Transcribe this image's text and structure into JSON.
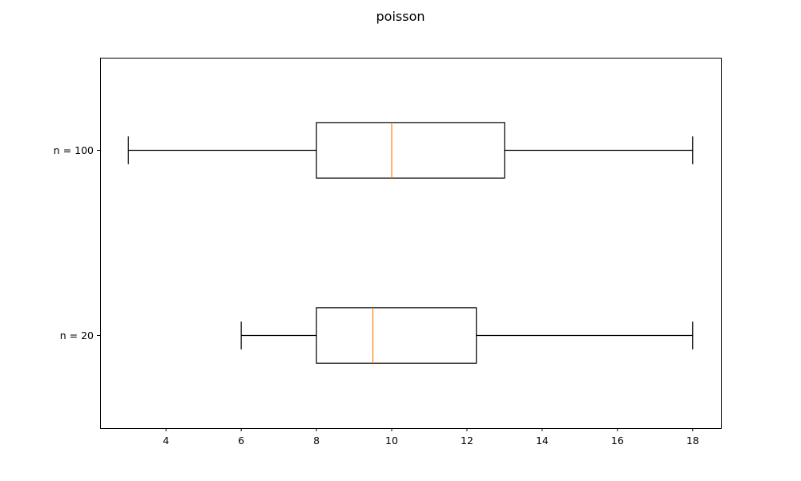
{
  "chart_data": {
    "type": "boxplot",
    "title": "poisson",
    "xlabel": "",
    "ylabel": "",
    "orientation": "horizontal",
    "xlim": [
      2.25,
      18.75
    ],
    "xticks": [
      4,
      6,
      8,
      10,
      12,
      14,
      16,
      18
    ],
    "grid": false,
    "legend": "none",
    "categories": [
      "n = 20",
      "n = 100"
    ],
    "series": [
      {
        "label": "n = 20",
        "whisker_low": 6,
        "q1": 8,
        "median": 9.5,
        "q3": 12.25,
        "whisker_high": 18
      },
      {
        "label": "n = 100",
        "whisker_low": 3,
        "q1": 8,
        "median": 10,
        "q3": 13,
        "whisker_high": 18
      }
    ],
    "colors": {
      "box": "#000000",
      "median": "#ff7f0e",
      "axes": "#000000"
    }
  }
}
